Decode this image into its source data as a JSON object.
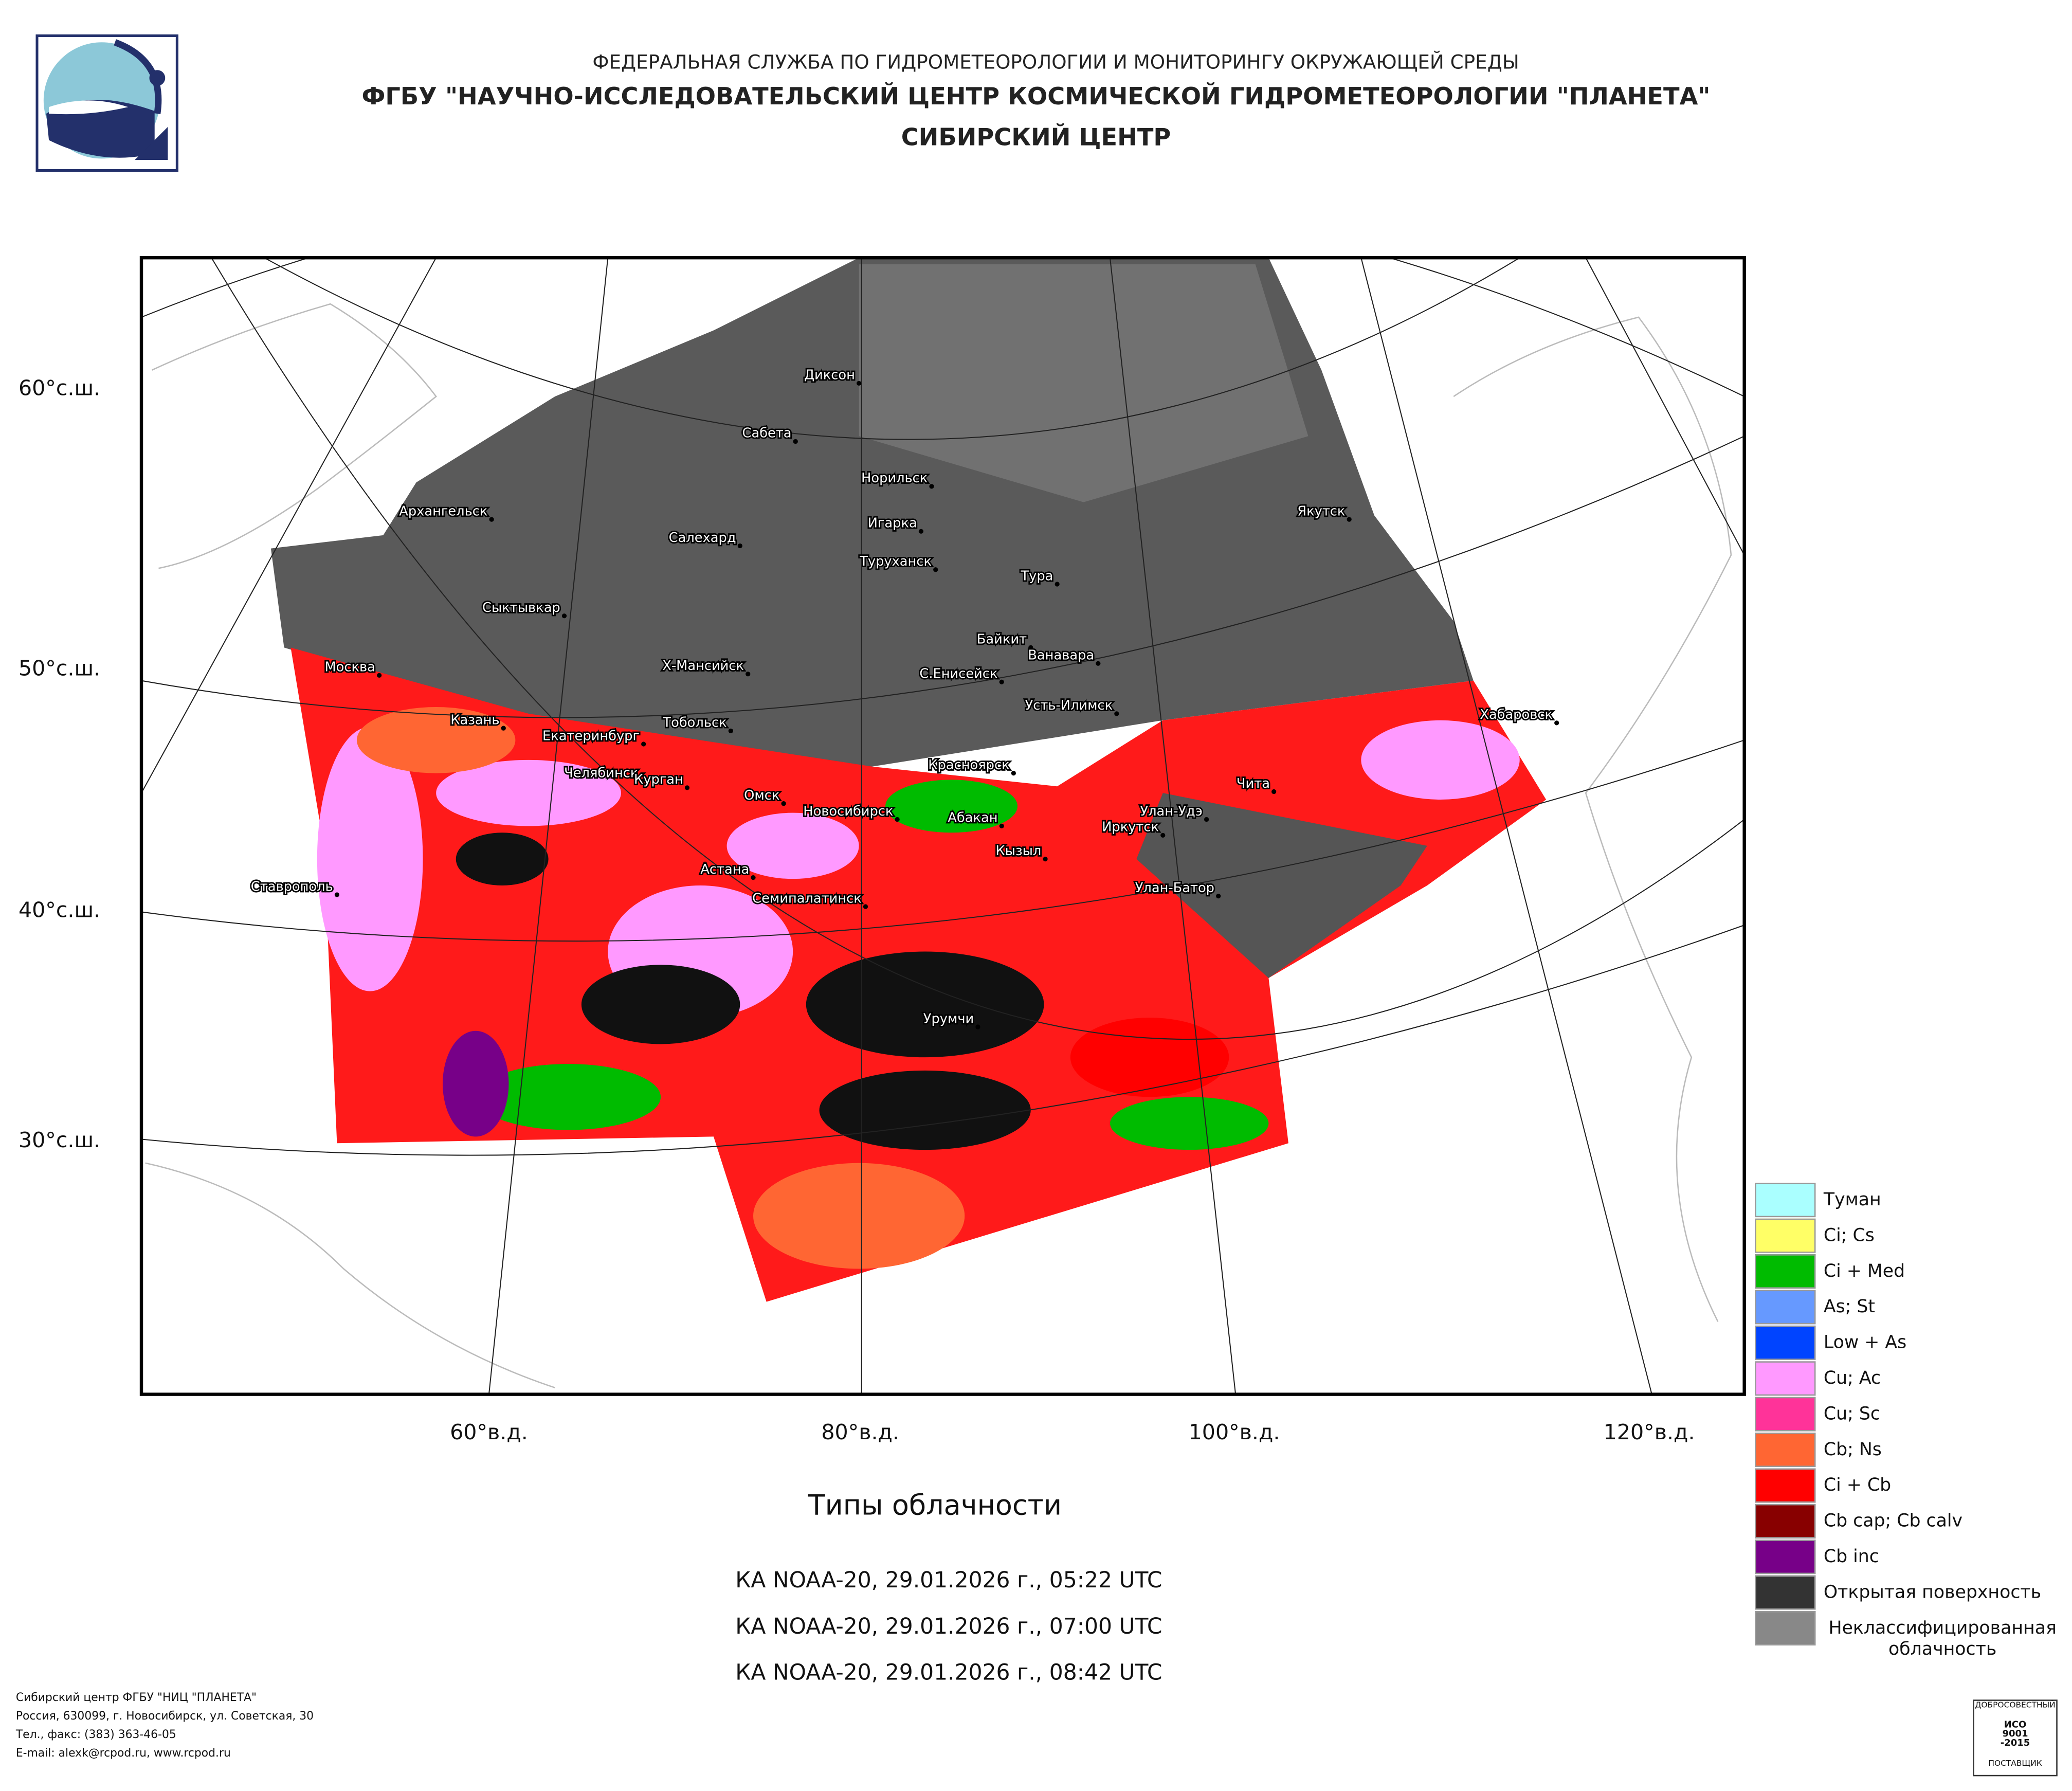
{
  "header": {
    "agency": "ФЕДЕРАЛЬНАЯ СЛУЖБА ПО ГИДРОМЕТЕОРОЛОГИИ И МОНИТОРИНГУ ОКРУЖАЮЩЕЙ СРЕДЫ",
    "institute": "ФГБУ \"НАУЧНО-ИССЛЕДОВАТЕЛЬСКИЙ ЦЕНТР КОСМИЧЕСКОЙ ГИДРОМЕТЕОРОЛОГИИ \"ПЛАНЕТА\"",
    "center": "СИБИРСКИЙ ЦЕНТР"
  },
  "map": {
    "lat_labels": [
      "60°с.ш.",
      "50°с.ш.",
      "40°с.ш.",
      "30°с.ш."
    ],
    "lon_labels": [
      "60°в.д.",
      "80°в.д.",
      "100°в.д.",
      "120°в.д."
    ],
    "cities": [
      "Диксон",
      "Сабета",
      "Норильск",
      "Архангельск",
      "Игарка",
      "Салехард",
      "Туруханск",
      "Тура",
      "Якутск",
      "Сыктывкар",
      "Байкит",
      "Ванавара",
      "Х-Мансийск",
      "С.Енисейск",
      "Москва",
      "Усть-Илимск",
      "Хабаровск",
      "Казань",
      "Тобольск",
      "Екатеринбург",
      "Красноярск",
      "Челябинск",
      "Курган",
      "Чита",
      "Омск",
      "Новосибирск",
      "Улан-Удэ",
      "Абакан",
      "Иркутск",
      "Кызыл",
      "Астана",
      "Семипалатинск",
      "Улан-Батор",
      "Ставрополь",
      "Урумчи"
    ]
  },
  "title": "Типы облачности",
  "passes": [
    "КА NOAA-20, 29.01.2026 г., 05:22 UTC",
    "КА NOAA-20, 29.01.2026 г., 07:00 UTC",
    "КА NOAA-20, 29.01.2026 г., 08:42 UTC"
  ],
  "legend": [
    {
      "name": "Туман",
      "color": "#aaffff"
    },
    {
      "name": "Ci; Cs",
      "color": "#ffff66"
    },
    {
      "name": "Ci + Med",
      "color": "#00bb00"
    },
    {
      "name": "As; St",
      "color": "#6699ff"
    },
    {
      "name": "Low + As",
      "color": "#0044ff"
    },
    {
      "name": "Cu; Ac",
      "color": "#ff99ff"
    },
    {
      "name": "Cu; Sc",
      "color": "#ff3399"
    },
    {
      "name": "Cb; Ns",
      "color": "#ff6633"
    },
    {
      "name": "Ci + Cb",
      "color": "#ff0000"
    },
    {
      "name": "Cb cap; Cb calv",
      "color": "#880000"
    },
    {
      "name": "Cb inc",
      "color": "#770088"
    },
    {
      "name": "Открытая поверхность",
      "color": "#333333"
    },
    {
      "name": "Неклассифицированная облачность",
      "color": "#888888"
    }
  ],
  "footer": [
    "Сибирский центр ФГБУ \"НИЦ \"ПЛАНЕТА\"",
    "Россия, 630099, г. Новосибирск, ул. Советская, 30",
    "Тел., факс: (383) 363-46-05",
    "E-mail: alexk@rcpod.ru, www.rcpod.ru"
  ],
  "cert": {
    "top": "ДОБРОСОВЕСТНЫЙ",
    "lines": [
      "ИСО",
      "9001",
      "-2015"
    ],
    "bottom": "ПОСТАВЩИК"
  }
}
